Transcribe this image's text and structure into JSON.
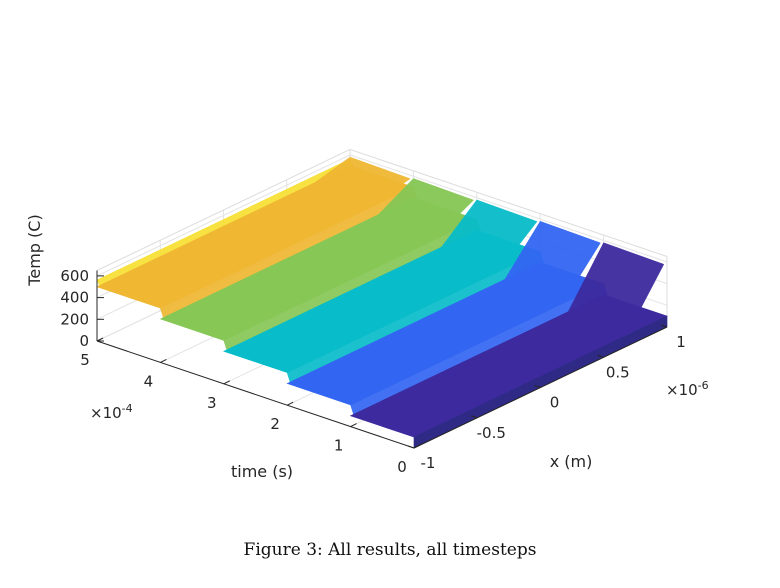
{
  "chart_data": {
    "type": "surface",
    "colormap": "parula",
    "grid": true,
    "x_axis": {
      "label": "x (m)",
      "ticks": [
        "-1",
        "-0.5",
        "0",
        "0.5",
        "1"
      ],
      "tick_values": [
        -1,
        -0.5,
        0,
        0.5,
        1
      ],
      "exponent": "×10",
      "exponent_power": "-6",
      "range": [
        -1,
        1
      ]
    },
    "time_axis": {
      "label": "time (s)",
      "ticks": [
        "0",
        "1",
        "2",
        "3",
        "4",
        "5"
      ],
      "tick_values": [
        0,
        1,
        2,
        3,
        4,
        5
      ],
      "exponent": "×10",
      "exponent_power": "-4",
      "range": [
        0,
        5
      ]
    },
    "z_axis": {
      "label": "Temp (C)",
      "ticks": [
        "0",
        "200",
        "400",
        "600"
      ],
      "tick_values": [
        0,
        200,
        400,
        600
      ],
      "range": [
        0,
        600
      ]
    },
    "plateaus": [
      {
        "time_start": 0.0,
        "time_end": 1.0,
        "temp": 100,
        "color": "#3c2a9e"
      },
      {
        "time_start": 1.0,
        "time_end": 2.0,
        "temp": 200,
        "color": "#3266f2"
      },
      {
        "time_start": 2.0,
        "time_end": 3.0,
        "temp": 300,
        "color": "#08bcc9"
      },
      {
        "time_start": 3.0,
        "time_end": 4.0,
        "temp": 400,
        "color": "#86c755"
      },
      {
        "time_start": 4.0,
        "time_end": 5.0,
        "temp": 500,
        "color": "#f0b733"
      },
      {
        "time_start": 5.0,
        "time_end": 5.0,
        "temp": 560,
        "color": "#f7e032"
      }
    ],
    "edge_peak_temp": 580
  },
  "caption": "Figure 3: All results, all timesteps"
}
